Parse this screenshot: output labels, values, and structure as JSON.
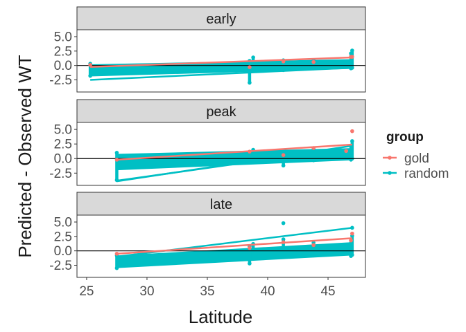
{
  "chart_data": {
    "type": "scatter",
    "xlabel": "Latitude",
    "ylabel": "Predicted - Observed WT",
    "xlim": [
      24.2,
      48.1
    ],
    "ylim": [
      -4.6,
      6.2
    ],
    "x_ticks": [
      25,
      30,
      35,
      40,
      45
    ],
    "x_tick_labels": [
      "25",
      "30",
      "35",
      "40",
      "45"
    ],
    "y_ticks": [
      -2.5,
      0,
      2.5,
      5
    ],
    "y_tick_labels": [
      "-2.5",
      "0.0",
      "2.5",
      "5.0"
    ],
    "reference_line_y": 0,
    "legend": {
      "title": "group",
      "entries": [
        {
          "name": "gold",
          "color": "#F8766D"
        },
        {
          "name": "random",
          "color": "#00BFC4"
        }
      ]
    },
    "colors": {
      "gold": "#F8766D",
      "random": "#00BFC4"
    },
    "facets": [
      {
        "label": "early",
        "random_band": {
          "x_start": 25.3,
          "x_end": 47.0,
          "low_start": -1.9,
          "high_start": 0.2,
          "low_end": -0.6,
          "high_end": 1.1
        },
        "random_lines": [
          [
            25.3,
            -2.5,
            47.0,
            -0.4
          ]
        ],
        "gold_line": [
          25.3,
          -0.25,
          47.0,
          1.4
        ],
        "random_clusters": [
          {
            "x": 25.3,
            "ymin": -1.8,
            "ymax": 0.3
          },
          {
            "x": 38.5,
            "ymin": -3.0,
            "ymax": 0.8
          },
          {
            "x": 38.8,
            "ymin": -0.6,
            "ymax": 1.4
          },
          {
            "x": 41.3,
            "ymin": -0.8,
            "ymax": 0.9
          },
          {
            "x": 43.8,
            "ymin": -0.5,
            "ymax": 0.9
          },
          {
            "x": 46.9,
            "ymin": -0.5,
            "ymax": 2.1
          },
          {
            "x": 47.0,
            "ymin": -0.4,
            "ymax": 2.6
          }
        ],
        "gold_points": [
          {
            "x": 25.3,
            "y": 0.1
          },
          {
            "x": 38.5,
            "y": -0.3
          },
          {
            "x": 41.3,
            "y": 0.7
          },
          {
            "x": 43.8,
            "y": 0.6
          },
          {
            "x": 46.9,
            "y": 1.5
          },
          {
            "x": 47.0,
            "y": 1.5
          }
        ]
      },
      {
        "label": "peak",
        "random_band": {
          "x_start": 27.5,
          "x_end": 47.0,
          "low_start": -2.0,
          "high_start": 0.8,
          "low_end": -0.3,
          "high_end": 1.8
        },
        "random_lines": [
          [
            27.5,
            -3.8,
            38.5,
            -0.6
          ],
          [
            27.5,
            -3.9,
            47.0,
            2.2
          ]
        ],
        "gold_line": [
          27.5,
          -0.2,
          47.0,
          2.4
        ],
        "random_clusters": [
          {
            "x": 27.5,
            "ymin": -3.7,
            "ymax": 1.0
          },
          {
            "x": 38.8,
            "ymin": -0.3,
            "ymax": 1.5
          },
          {
            "x": 41.3,
            "ymin": -1.2,
            "ymax": 0.7
          },
          {
            "x": 43.8,
            "ymin": -0.3,
            "ymax": 1.6
          },
          {
            "x": 46.9,
            "ymin": -0.2,
            "ymax": 2.2
          },
          {
            "x": 47.0,
            "ymin": 0.0,
            "ymax": 3.0
          }
        ],
        "gold_points": [
          {
            "x": 27.5,
            "y": -0.2
          },
          {
            "x": 38.5,
            "y": 1.2
          },
          {
            "x": 41.3,
            "y": 0.6
          },
          {
            "x": 43.8,
            "y": 1.8
          },
          {
            "x": 46.5,
            "y": 1.3
          },
          {
            "x": 47.0,
            "y": 4.7
          }
        ]
      },
      {
        "label": "late",
        "random_band": {
          "x_start": 27.5,
          "x_end": 47.0,
          "low_start": -3.0,
          "high_start": -0.8,
          "low_end": -0.8,
          "high_end": 1.5
        },
        "random_lines": [
          [
            27.5,
            -1.0,
            47.0,
            4.0
          ]
        ],
        "gold_line": [
          27.5,
          -0.5,
          47.0,
          2.2
        ],
        "random_clusters": [
          {
            "x": 27.5,
            "ymin": -3.0,
            "ymax": -0.8
          },
          {
            "x": 38.5,
            "ymin": -2.2,
            "ymax": 0.8
          },
          {
            "x": 38.8,
            "ymin": -1.2,
            "ymax": 1.2
          },
          {
            "x": 41.3,
            "ymin": -0.8,
            "ymax": 2.0
          },
          {
            "x": 43.8,
            "ymin": -0.8,
            "ymax": 1.4
          },
          {
            "x": 46.9,
            "ymin": -0.9,
            "ymax": 1.8
          },
          {
            "x": 47.0,
            "ymin": -0.7,
            "ymax": 2.6
          }
        ],
        "random_points": [
          {
            "x": 41.3,
            "y": 4.8
          },
          {
            "x": 47.0,
            "y": 4.0
          }
        ],
        "gold_points": [
          {
            "x": 27.5,
            "y": -0.5
          },
          {
            "x": 38.5,
            "y": 0.5
          },
          {
            "x": 41.3,
            "y": 1.5
          },
          {
            "x": 43.8,
            "y": 1.0
          },
          {
            "x": 46.9,
            "y": 1.8
          },
          {
            "x": 47.0,
            "y": 3.0
          }
        ]
      }
    ]
  }
}
